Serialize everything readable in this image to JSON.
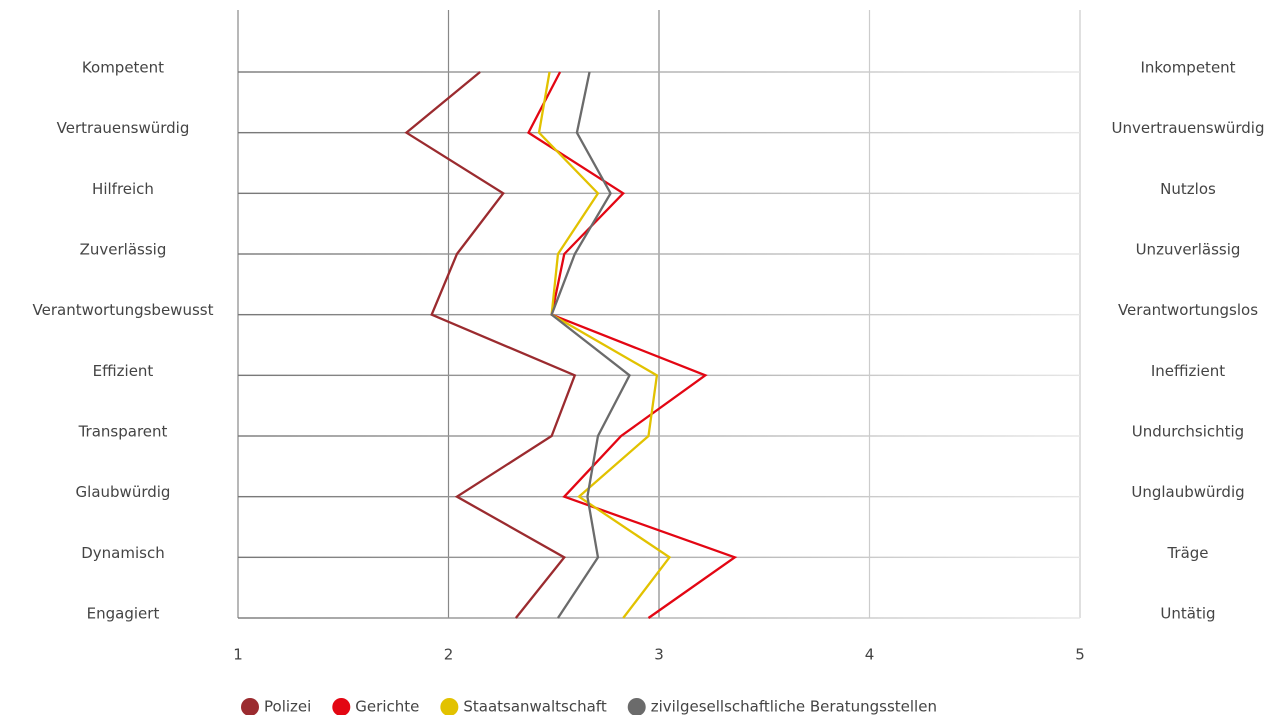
{
  "chart_data": {
    "type": "line",
    "orientation": "horizontal",
    "categories": [
      "Kompetent",
      "Vertrauenswürdig",
      "Hilfreich",
      "Zuverlässig",
      "Verantwortungsbewusst",
      "Effizient",
      "Transparent",
      "Glaubwürdig",
      "Dynamisch",
      "Engagiert"
    ],
    "right_categories": [
      "Inkompetent",
      "Unvertrauenswürdig",
      "Nutzlos",
      "Unzuverlässig",
      "Verantwortungslos",
      "Ineffizient",
      "Undurchsichtig",
      "Unglaubwürdig",
      "Träge",
      "Untätig"
    ],
    "series": [
      {
        "name": "Polizei",
        "color": "#9b2b2f",
        "values": [
          2.15,
          1.8,
          2.26,
          2.04,
          1.92,
          2.6,
          2.49,
          2.04,
          2.55,
          2.32
        ]
      },
      {
        "name": "Gerichte",
        "color": "#e30613",
        "values": [
          2.53,
          2.38,
          2.83,
          2.55,
          2.49,
          3.22,
          2.82,
          2.55,
          3.36,
          2.95
        ]
      },
      {
        "name": "Staatsanwaltschaft",
        "color": "#e2c200",
        "values": [
          2.48,
          2.43,
          2.71,
          2.52,
          2.49,
          2.99,
          2.95,
          2.62,
          3.05,
          2.83
        ]
      },
      {
        "name": "zivilgesellschaftliche Beratungsstellen",
        "color": "#6b6b6b",
        "values": [
          2.67,
          2.61,
          2.77,
          2.6,
          2.49,
          2.86,
          2.71,
          2.66,
          2.71,
          2.52
        ]
      }
    ],
    "xlim": [
      1,
      5
    ],
    "xticks": [
      1,
      2,
      3,
      4,
      5
    ],
    "grid": true,
    "legend": "bottom"
  }
}
